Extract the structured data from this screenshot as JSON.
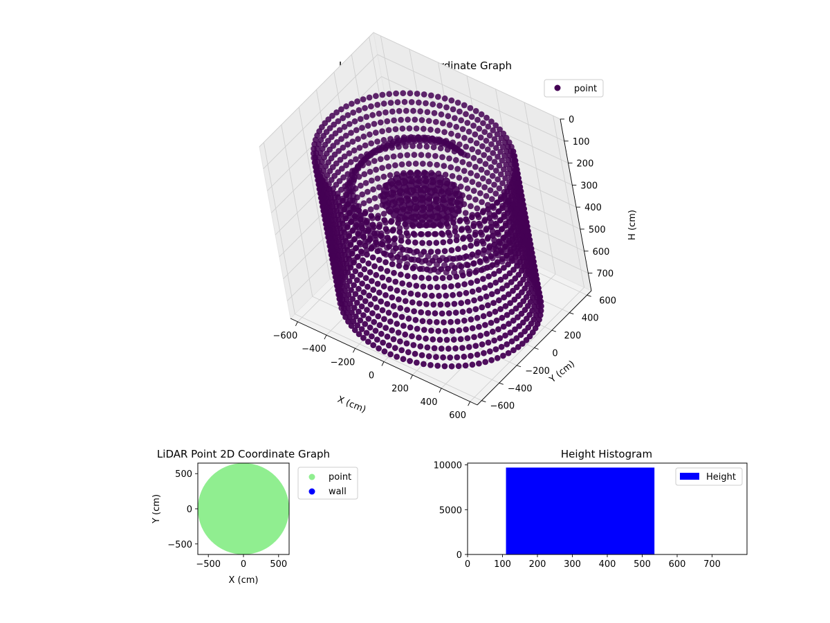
{
  "colors": {
    "point3d": "#440154",
    "point2d": "#90ee90",
    "wall": "#0000ff",
    "hist": "#0000ff"
  },
  "chart_data": [
    {
      "type": "scatter",
      "projection": "3d",
      "title": "LiDAR Point 3D Coordinate Graph",
      "xlabel": "X (cm)",
      "ylabel": "Y (cm)",
      "zlabel": "H (cm)",
      "xlim": [
        -650,
        650
      ],
      "ylim": [
        -650,
        650
      ],
      "zlim": [
        0,
        780
      ],
      "z_inverted": true,
      "xticks": [
        "−600",
        "−400",
        "−200",
        "0",
        "200",
        "400",
        "600"
      ],
      "yticks": [
        "−600",
        "−400",
        "−200",
        "0",
        "200",
        "400",
        "600"
      ],
      "zticks": [
        "0",
        "100",
        "200",
        "300",
        "400",
        "500",
        "600",
        "700"
      ],
      "legend": {
        "position": "upper-right",
        "entries": [
          "point"
        ]
      },
      "series": [
        {
          "name": "point",
          "shape": "ring-columns",
          "outer_wall": {
            "radius": 600,
            "h_range": [
              120,
              760
            ]
          },
          "inner_spiral": {
            "radius_range": [
              300,
              550
            ],
            "h_range": [
              150,
              420
            ]
          },
          "center_floor": {
            "radius": 260,
            "h": 300
          }
        }
      ]
    },
    {
      "type": "scatter",
      "title": "LiDAR Point 2D Coordinate Graph",
      "xlabel": "X (cm)",
      "ylabel": "Y (cm)",
      "xlim": [
        -650,
        650
      ],
      "ylim": [
        -650,
        650
      ],
      "xticks": [
        "−500",
        "0",
        "500"
      ],
      "yticks": [
        "−500",
        "0",
        "500"
      ],
      "legend": {
        "position": "outside-right",
        "entries": [
          "point",
          "wall"
        ]
      },
      "series": [
        {
          "name": "point",
          "region": "disk",
          "radius": 650
        },
        {
          "name": "wall",
          "count": 0
        }
      ]
    },
    {
      "type": "bar",
      "title": "Height Histogram",
      "xlim": [
        0,
        800
      ],
      "ylim": [
        0,
        10200
      ],
      "xticks": [
        "0",
        "100",
        "200",
        "300",
        "400",
        "500",
        "600",
        "700"
      ],
      "yticks": [
        "0",
        "5000",
        "10000"
      ],
      "legend": {
        "position": "upper-right",
        "entries": [
          "Height"
        ]
      },
      "bins": [
        {
          "x0": 110,
          "x1": 535,
          "count": 9700
        }
      ]
    }
  ]
}
